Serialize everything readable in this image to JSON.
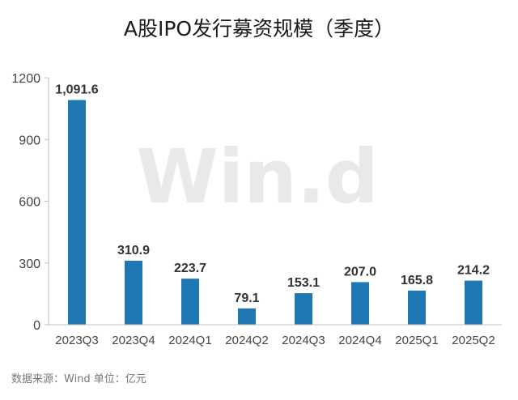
{
  "chart_data": {
    "type": "bar",
    "title": "A股IPO发行募资规模（季度）",
    "categories": [
      "2023Q3",
      "2023Q4",
      "2024Q1",
      "2024Q2",
      "2024Q3",
      "2024Q4",
      "2025Q1",
      "2025Q2"
    ],
    "values": [
      1091.6,
      310.9,
      223.7,
      79.1,
      153.1,
      207.0,
      165.8,
      214.2
    ],
    "value_labels": [
      "1,091.6",
      "310.9",
      "223.7",
      "79.1",
      "153.1",
      "207.0",
      "165.8",
      "214.2"
    ],
    "ylim": [
      0,
      1200
    ],
    "yticks": [
      0,
      300,
      600,
      900,
      1200
    ],
    "bar_color": "#1f77b4",
    "grid": false,
    "legend": false
  },
  "watermark": "Win.d",
  "source": "数据来源：Wind 单位：亿元"
}
